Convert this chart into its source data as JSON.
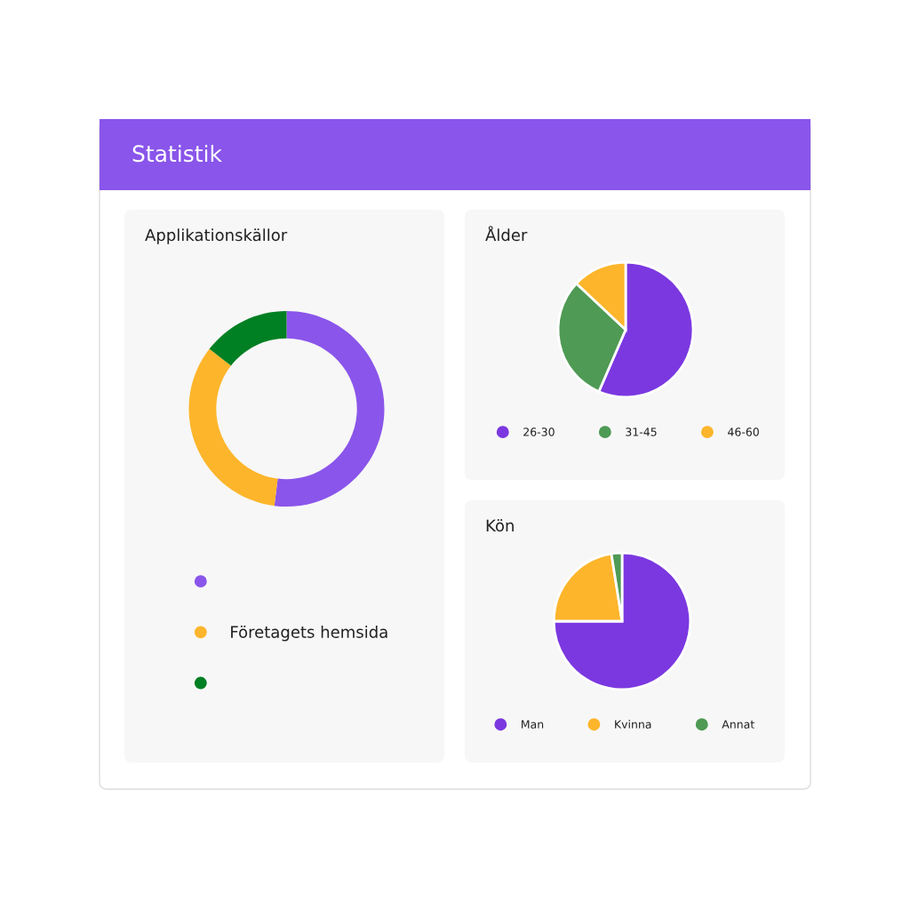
{
  "chart_data": [
    {
      "type": "other",
      "title": "Statistik"
    },
    {
      "type": "donut",
      "title": "Applikationskällor",
      "categories": [
        null,
        "Företagets hemsida",
        null
      ],
      "values": [
        52,
        33.5,
        14.5
      ],
      "colors": [
        "#8a55ea",
        "#fdb52b",
        "#007f23"
      ],
      "legend": "bottom"
    },
    {
      "type": "pie",
      "title": "Ålder",
      "categories": [
        "26-30",
        "31-45",
        "46-60"
      ],
      "values": [
        56.5,
        30.5,
        13
      ],
      "colors": [
        "#7b38e0",
        "#4f9a55",
        "#fdb52b"
      ],
      "legend": "bottom"
    },
    {
      "type": "pie",
      "title": "Kön",
      "categories": [
        "Man",
        "Kvinna",
        "Annat"
      ],
      "values": [
        75,
        22.5,
        2.5
      ],
      "colors": [
        "#7b38e0",
        "#fdb52b",
        "#4f9a55"
      ],
      "legend": "bottom"
    }
  ]
}
